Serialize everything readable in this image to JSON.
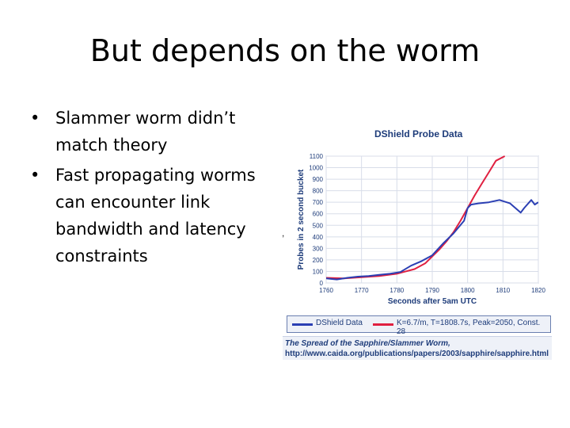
{
  "slide": {
    "title": "But depends on the worm",
    "bullets": [
      "Slammer worm didn’t match theory",
      "Fast propagating worms can encounter link bandwidth and latency constraints"
    ],
    "bullet_glyph": "•"
  },
  "figure": {
    "title": "DShield Probe Data",
    "legend": {
      "series1": "DShield Data",
      "series2": "K=6.7/m, T=1808.7s, Peak=2050, Const. 28"
    },
    "caption_line1": "The Spread of the Sapphire/Slammer Worm,",
    "caption_line2": "http://www.caida.org/publications/papers/2003/sapphire/sapphire.html",
    "stray_mark": ","
  },
  "chart_data": {
    "type": "line",
    "title": "DShield Probe Data",
    "xlabel": "Seconds after 5am UTC",
    "ylabel": "Probes in 2 second bucket",
    "xlim": [
      1760,
      1820
    ],
    "ylim": [
      0,
      1100
    ],
    "xticks": [
      "1760",
      "1770",
      "1780",
      "1790",
      "1800",
      "1810",
      "1820"
    ],
    "yticks": [
      "0",
      "100",
      "200",
      "300",
      "400",
      "500",
      "600",
      "700",
      "800",
      "900",
      "1000",
      "1100"
    ],
    "grid": true,
    "colors": {
      "series1": "#2b3fb3",
      "series2": "#e02040"
    },
    "series": [
      {
        "name": "DShield Data",
        "x": [
          1760,
          1763,
          1766,
          1769,
          1772,
          1775,
          1778,
          1781,
          1784,
          1787,
          1790,
          1793,
          1796,
          1799,
          1800,
          1801,
          1803,
          1806,
          1809,
          1812,
          1815,
          1816,
          1818,
          1819,
          1820
        ],
        "y": [
          40,
          30,
          45,
          55,
          60,
          70,
          80,
          95,
          150,
          190,
          240,
          340,
          430,
          540,
          650,
          680,
          690,
          700,
          720,
          690,
          610,
          650,
          720,
          680,
          700
        ]
      },
      {
        "name": "K=6.7/m, T=1808.7s, Peak=2050, Const. 28",
        "x": [
          1760,
          1765,
          1770,
          1775,
          1780,
          1785,
          1788,
          1790,
          1792,
          1794,
          1796,
          1798,
          1800,
          1802,
          1804,
          1806,
          1808,
          1810.5
        ],
        "y": [
          45,
          40,
          50,
          60,
          80,
          120,
          170,
          230,
          290,
          360,
          440,
          540,
          650,
          760,
          860,
          960,
          1060,
          1100
        ]
      }
    ]
  }
}
